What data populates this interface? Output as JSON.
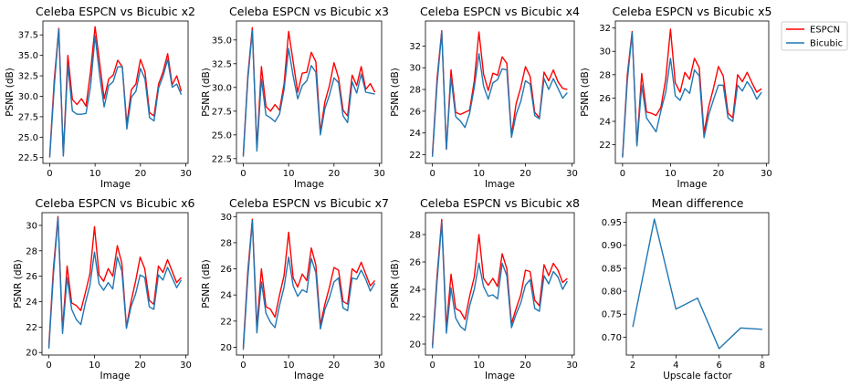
{
  "colors": {
    "espcn": "#ff0000",
    "bicubic": "#1f77b4"
  },
  "legend": {
    "placement": "outside-right-top",
    "entries": [
      {
        "name": "ESPCN",
        "color": "#ff0000"
      },
      {
        "name": "Bicubic",
        "color": "#1f77b4"
      }
    ]
  },
  "chart_data": [
    {
      "type": "line",
      "title": "Celeba ESPCN vs Bicubic x2",
      "xlabel": "Image",
      "ylabel": "PSNR (dB)",
      "xlim": [
        -1.5,
        30.5
      ],
      "ylim": [
        21.8,
        39.2
      ],
      "xticks": [
        0,
        10,
        20,
        30
      ],
      "yticks": [
        22.5,
        25.0,
        27.5,
        30.0,
        32.5,
        35.0,
        37.5
      ],
      "ytick_labels": [
        "22.5",
        "25.0",
        "27.5",
        "30.0",
        "32.5",
        "35.0",
        "37.5"
      ],
      "x": [
        0,
        1,
        2,
        3,
        4,
        5,
        6,
        7,
        8,
        9,
        10,
        11,
        12,
        13,
        14,
        15,
        16,
        17,
        18,
        19,
        20,
        21,
        22,
        23,
        24,
        25,
        26,
        27,
        28,
        29
      ],
      "series": [
        {
          "name": "ESPCN",
          "values": [
            22.7,
            32.0,
            38.3,
            22.9,
            35.0,
            29.6,
            29.0,
            29.7,
            28.8,
            33.0,
            38.5,
            34.1,
            29.7,
            32.1,
            32.6,
            34.4,
            33.6,
            26.6,
            30.8,
            31.5,
            34.5,
            33.0,
            28.0,
            27.6,
            31.5,
            33.0,
            35.2,
            31.4,
            32.5,
            30.6
          ]
        },
        {
          "name": "Bicubic",
          "values": [
            22.5,
            31.2,
            38.2,
            22.7,
            33.8,
            28.2,
            27.8,
            27.8,
            27.9,
            31.2,
            37.4,
            32.6,
            28.7,
            31.3,
            31.8,
            33.6,
            33.6,
            26.0,
            29.9,
            30.6,
            33.4,
            32.1,
            27.4,
            27.0,
            31.0,
            32.5,
            34.5,
            31.1,
            31.5,
            30.2
          ]
        }
      ]
    },
    {
      "type": "line",
      "title": "Celeba ESPCN vs Bicubic x3",
      "xlabel": "Image",
      "ylabel": "PSNR (dB)",
      "xlim": [
        -1.5,
        30.5
      ],
      "ylim": [
        22.0,
        37.0
      ],
      "xticks": [
        0,
        10,
        20,
        30
      ],
      "yticks": [
        22.5,
        25.0,
        27.5,
        30.0,
        32.5,
        35.0
      ],
      "ytick_labels": [
        "22.5",
        "25.0",
        "27.5",
        "30.0",
        "32.5",
        "35.0"
      ],
      "x": [
        0,
        1,
        2,
        3,
        4,
        5,
        6,
        7,
        8,
        9,
        10,
        11,
        12,
        13,
        14,
        15,
        16,
        17,
        18,
        19,
        20,
        21,
        22,
        23,
        24,
        25,
        26,
        27,
        28,
        29
      ],
      "series": [
        {
          "name": "ESPCN",
          "values": [
            22.9,
            31.2,
            36.3,
            23.6,
            32.2,
            28.0,
            27.5,
            28.2,
            27.6,
            30.4,
            35.9,
            32.7,
            29.5,
            31.5,
            31.6,
            33.7,
            32.7,
            25.3,
            28.5,
            30.2,
            32.6,
            31.0,
            27.6,
            27.0,
            31.3,
            30.2,
            32.2,
            29.8,
            30.4,
            29.5
          ]
        },
        {
          "name": "Bicubic",
          "values": [
            22.7,
            30.8,
            36.0,
            23.3,
            30.9,
            27.1,
            26.8,
            26.4,
            27.2,
            29.8,
            34.1,
            31.2,
            28.8,
            30.2,
            30.7,
            32.3,
            31.6,
            25.0,
            27.8,
            29.2,
            31.0,
            30.5,
            27.0,
            26.3,
            30.6,
            29.4,
            31.4,
            29.5,
            29.4,
            29.3
          ]
        }
      ]
    },
    {
      "type": "line",
      "title": "Celeba ESPCN vs Bicubic x4",
      "xlabel": "Image",
      "ylabel": "PSNR (dB)",
      "xlim": [
        -1.5,
        30.5
      ],
      "ylim": [
        21.2,
        34.3
      ],
      "xticks": [
        0,
        10,
        20,
        30
      ],
      "yticks": [
        22,
        24,
        26,
        28,
        30,
        32
      ],
      "ytick_labels": [
        "22",
        "24",
        "26",
        "28",
        "30",
        "32"
      ],
      "x": [
        0,
        1,
        2,
        3,
        4,
        5,
        6,
        7,
        8,
        9,
        10,
        11,
        12,
        13,
        14,
        15,
        16,
        17,
        18,
        19,
        20,
        21,
        22,
        23,
        24,
        25,
        26,
        27,
        28,
        29
      ],
      "series": [
        {
          "name": "ESPCN",
          "values": [
            22.0,
            29.0,
            33.4,
            22.5,
            29.8,
            25.9,
            25.7,
            25.9,
            26.1,
            28.8,
            33.3,
            29.4,
            27.9,
            29.5,
            29.3,
            31.0,
            30.4,
            23.8,
            26.7,
            28.2,
            30.1,
            29.2,
            25.9,
            25.4,
            29.6,
            28.8,
            29.8,
            28.7,
            28.1,
            28.0
          ]
        },
        {
          "name": "Bicubic",
          "values": [
            21.8,
            28.5,
            33.3,
            22.5,
            29.1,
            25.5,
            25.1,
            24.5,
            25.8,
            28.2,
            31.3,
            28.3,
            27.1,
            28.6,
            28.9,
            29.9,
            29.8,
            23.6,
            25.7,
            26.9,
            28.8,
            28.5,
            25.6,
            25.3,
            29.0,
            28.0,
            29.0,
            28.1,
            27.2,
            27.7
          ]
        }
      ]
    },
    {
      "type": "line",
      "title": "Celeba ESPCN vs Bicubic x5",
      "xlabel": "Image",
      "ylabel": "PSNR (dB)",
      "xlim": [
        -1.5,
        30.5
      ],
      "ylim": [
        20.4,
        32.6
      ],
      "xticks": [
        0,
        10,
        20,
        30
      ],
      "yticks": [
        22,
        24,
        26,
        28,
        30,
        32
      ],
      "ytick_labels": [
        "22",
        "24",
        "26",
        "28",
        "30",
        "32"
      ],
      "x": [
        0,
        1,
        2,
        3,
        4,
        5,
        6,
        7,
        8,
        9,
        10,
        11,
        12,
        13,
        14,
        15,
        16,
        17,
        18,
        19,
        20,
        21,
        22,
        23,
        24,
        25,
        26,
        27,
        28,
        29
      ],
      "series": [
        {
          "name": "ESPCN",
          "values": [
            21.0,
            28.0,
            31.7,
            22.0,
            28.1,
            24.8,
            24.7,
            24.5,
            25.2,
            27.6,
            31.9,
            27.3,
            26.5,
            28.2,
            27.6,
            29.4,
            28.6,
            23.0,
            25.3,
            26.9,
            28.7,
            27.9,
            24.7,
            24.3,
            28.0,
            27.4,
            28.2,
            27.3,
            26.5,
            26.8
          ]
        },
        {
          "name": "Bicubic",
          "values": [
            20.9,
            27.5,
            31.6,
            21.9,
            27.1,
            24.3,
            23.7,
            23.1,
            24.9,
            26.5,
            29.4,
            26.2,
            25.8,
            26.8,
            26.4,
            28.4,
            27.9,
            22.6,
            24.6,
            25.9,
            27.1,
            27.1,
            24.3,
            24.0,
            27.1,
            26.6,
            27.4,
            26.8,
            25.9,
            26.5
          ]
        }
      ]
    },
    {
      "type": "line",
      "title": "Celeba ESPCN vs Bicubic x6",
      "xlabel": "Image",
      "ylabel": "PSNR (dB)",
      "xlim": [
        -1.5,
        30.5
      ],
      "ylim": [
        19.8,
        31.0
      ],
      "xticks": [
        0,
        10,
        20,
        30
      ],
      "yticks": [
        20,
        22,
        24,
        26,
        28,
        30
      ],
      "ytick_labels": [
        "20",
        "22",
        "24",
        "26",
        "28",
        "30"
      ],
      "x": [
        0,
        1,
        2,
        3,
        4,
        5,
        6,
        7,
        8,
        9,
        10,
        11,
        12,
        13,
        14,
        15,
        16,
        17,
        18,
        19,
        20,
        21,
        22,
        23,
        24,
        25,
        26,
        27,
        28,
        29
      ],
      "series": [
        {
          "name": "ESPCN",
          "values": [
            20.5,
            26.6,
            30.7,
            21.8,
            26.8,
            23.9,
            23.7,
            23.3,
            24.7,
            26.2,
            29.9,
            26.1,
            25.6,
            26.6,
            26.0,
            28.4,
            27.0,
            22.0,
            24.0,
            25.6,
            27.5,
            26.6,
            24.1,
            23.8,
            26.8,
            26.3,
            27.3,
            26.4,
            25.5,
            25.9
          ]
        },
        {
          "name": "Bicubic",
          "values": [
            20.3,
            26.1,
            30.6,
            21.5,
            25.9,
            23.4,
            22.6,
            22.2,
            23.9,
            25.3,
            27.9,
            25.4,
            24.9,
            25.5,
            25.0,
            27.5,
            26.4,
            21.9,
            23.6,
            24.6,
            26.1,
            25.9,
            23.6,
            23.4,
            26.1,
            25.7,
            26.7,
            25.9,
            25.1,
            25.7
          ]
        }
      ]
    },
    {
      "type": "line",
      "title": "Celeba ESPCN vs Bicubic x7",
      "xlabel": "Image",
      "ylabel": "PSNR (dB)",
      "xlim": [
        -1.5,
        30.5
      ],
      "ylim": [
        19.4,
        30.3
      ],
      "xticks": [
        0,
        10,
        20,
        30
      ],
      "yticks": [
        20,
        22,
        24,
        26,
        28,
        30
      ],
      "ytick_labels": [
        "20",
        "22",
        "24",
        "26",
        "28",
        "30"
      ],
      "x": [
        0,
        1,
        2,
        3,
        4,
        5,
        6,
        7,
        8,
        9,
        10,
        11,
        12,
        13,
        14,
        15,
        16,
        17,
        18,
        19,
        20,
        21,
        22,
        23,
        24,
        25,
        26,
        27,
        28,
        29
      ],
      "series": [
        {
          "name": "ESPCN",
          "values": [
            20.0,
            25.8,
            29.8,
            21.5,
            26.0,
            23.1,
            22.9,
            22.3,
            24.0,
            25.5,
            28.8,
            25.3,
            24.6,
            25.6,
            25.1,
            27.6,
            26.3,
            21.7,
            23.3,
            24.6,
            26.1,
            25.9,
            23.5,
            23.3,
            26.0,
            25.7,
            26.5,
            25.6,
            24.7,
            25.1
          ]
        },
        {
          "name": "Bicubic",
          "values": [
            19.8,
            25.3,
            29.7,
            21.1,
            25.0,
            22.6,
            21.9,
            21.5,
            23.2,
            24.6,
            26.9,
            24.7,
            23.9,
            24.4,
            24.2,
            26.8,
            25.7,
            21.4,
            22.9,
            23.8,
            25.0,
            25.3,
            23.0,
            22.8,
            25.3,
            25.2,
            25.9,
            25.2,
            24.3,
            24.9
          ]
        }
      ]
    },
    {
      "type": "line",
      "title": "Celeba ESPCN vs Bicubic x8",
      "xlabel": "Image",
      "ylabel": "PSNR (dB)",
      "xlim": [
        -1.5,
        30.5
      ],
      "ylim": [
        19.2,
        29.6
      ],
      "xticks": [
        0,
        10,
        20,
        30
      ],
      "yticks": [
        20,
        22,
        24,
        26,
        28
      ],
      "ytick_labels": [
        "20",
        "22",
        "24",
        "26",
        "28"
      ],
      "x": [
        0,
        1,
        2,
        3,
        4,
        5,
        6,
        7,
        8,
        9,
        10,
        11,
        12,
        13,
        14,
        15,
        16,
        17,
        18,
        19,
        20,
        21,
        22,
        23,
        24,
        25,
        26,
        27,
        28,
        29
      ],
      "series": [
        {
          "name": "ESPCN",
          "values": [
            19.9,
            25.0,
            29.1,
            21.2,
            25.1,
            22.6,
            22.4,
            21.8,
            23.5,
            24.9,
            28.0,
            24.8,
            24.3,
            24.8,
            24.2,
            26.6,
            25.5,
            21.5,
            22.6,
            23.6,
            25.4,
            25.3,
            23.2,
            22.8,
            25.8,
            25.0,
            25.9,
            25.4,
            24.5,
            24.8
          ]
        },
        {
          "name": "Bicubic",
          "values": [
            19.7,
            24.6,
            28.9,
            20.8,
            24.1,
            21.9,
            21.3,
            21.0,
            22.8,
            24.0,
            25.9,
            24.2,
            23.5,
            23.6,
            23.3,
            25.9,
            25.0,
            21.2,
            22.2,
            23.0,
            24.3,
            24.7,
            22.6,
            22.4,
            25.0,
            24.4,
            25.3,
            24.9,
            24.0,
            24.6
          ]
        }
      ]
    },
    {
      "type": "line",
      "title": "Mean difference",
      "xlabel": "Upscale factor",
      "ylabel": "",
      "xlim": [
        1.7,
        8.3
      ],
      "ylim": [
        0.661,
        0.971
      ],
      "xticks": [
        2,
        4,
        6,
        8
      ],
      "yticks": [
        0.7,
        0.75,
        0.8,
        0.85,
        0.9,
        0.95
      ],
      "ytick_labels": [
        "0.70",
        "0.75",
        "0.80",
        "0.85",
        "0.90",
        "0.95"
      ],
      "x": [
        2,
        3,
        4,
        5,
        6,
        7,
        8
      ],
      "series": [
        {
          "values": [
            0.722,
            0.957,
            0.761,
            0.785,
            0.675,
            0.72,
            0.717
          ]
        }
      ]
    }
  ]
}
